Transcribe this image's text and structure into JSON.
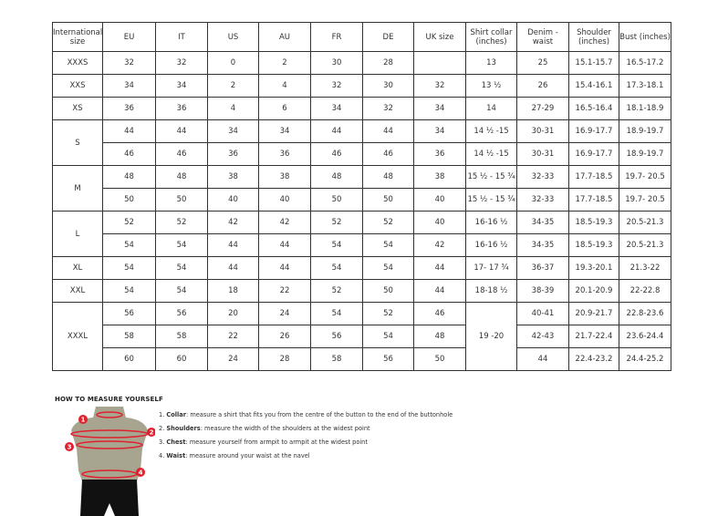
{
  "table": {
    "headers": [
      "International size",
      "EU",
      "IT",
      "US",
      "AU",
      "FR",
      "DE",
      "UK size",
      "Shirt collar (inches)",
      "Denim - waist",
      "Shoulder (inches)",
      "Bust (inches)"
    ],
    "groups": [
      {
        "size": "XXXS",
        "rows": [
          [
            "32",
            "32",
            "0",
            "2",
            "30",
            "28",
            "",
            "13",
            "25",
            "15.1-15.7",
            "16.5-17.2"
          ]
        ]
      },
      {
        "size": "XXS",
        "rows": [
          [
            "34",
            "34",
            "2",
            "4",
            "32",
            "30",
            "32",
            "13 ½",
            "26",
            "15.4-16.1",
            "17.3-18.1"
          ]
        ]
      },
      {
        "size": "XS",
        "rows": [
          [
            "36",
            "36",
            "4",
            "6",
            "34",
            "32",
            "34",
            "14",
            "27-29",
            "16.5-16.4",
            "18.1-18.9"
          ]
        ]
      },
      {
        "size": "S",
        "rows": [
          [
            "44",
            "44",
            "34",
            "34",
            "44",
            "44",
            "34",
            "14 ½ -15",
            "30-31",
            "16.9-17.7",
            "18.9-19.7"
          ],
          [
            "46",
            "46",
            "36",
            "36",
            "46",
            "46",
            "36",
            "14 ½ -15",
            "30-31",
            "16.9-17.7",
            "18.9-19.7"
          ]
        ]
      },
      {
        "size": "M",
        "rows": [
          [
            "48",
            "48",
            "38",
            "38",
            "48",
            "48",
            "38",
            "15 ½ - 15 ¾",
            "32-33",
            "17.7-18.5",
            "19.7- 20.5"
          ],
          [
            "50",
            "50",
            "40",
            "40",
            "50",
            "50",
            "40",
            "15 ½ - 15 ¾",
            "32-33",
            "17.7-18.5",
            "19.7- 20.5"
          ]
        ]
      },
      {
        "size": "L",
        "rows": [
          [
            "52",
            "52",
            "42",
            "42",
            "52",
            "52",
            "40",
            "16-16 ½",
            "34-35",
            "18.5-19.3",
            "20.5-21.3"
          ],
          [
            "54",
            "54",
            "44",
            "44",
            "54",
            "54",
            "42",
            "16-16 ½",
            "34-35",
            "18.5-19.3",
            "20.5-21.3"
          ]
        ]
      },
      {
        "size": "XL",
        "rows": [
          [
            "54",
            "54",
            "44",
            "44",
            "54",
            "54",
            "44",
            "17- 17 ¾",
            "36-37",
            "19.3-20.1",
            "21.3-22"
          ]
        ]
      },
      {
        "size": "XXL",
        "rows": [
          [
            "54",
            "54",
            "18",
            "22",
            "52",
            "50",
            "44",
            "18-18 ½",
            "38-39",
            "20.1-20.9",
            "22-22.8"
          ]
        ]
      },
      {
        "size": "XXXL",
        "collar_merged": "19 -20",
        "rows": [
          [
            "56",
            "56",
            "20",
            "24",
            "54",
            "52",
            "46",
            null,
            "40-41",
            "20.9-21.7",
            "22.8-23.6"
          ],
          [
            "58",
            "58",
            "22",
            "26",
            "56",
            "54",
            "48",
            null,
            "42-43",
            "21.7-22.4",
            "23.6-24.4"
          ],
          [
            "60",
            "60",
            "24",
            "28",
            "58",
            "56",
            "50",
            null,
            "44",
            "22.4-23.2",
            "24.4-25.2"
          ]
        ]
      }
    ]
  },
  "measure": {
    "title": "HOW TO MEASURE YOURSELF",
    "steps": [
      {
        "num": "1.",
        "term": "Collar",
        "text": ": measure a shirt that fits you from the centre of the button to the end of the buttonhole"
      },
      {
        "num": "2.",
        "term": "Shoulders",
        "text": ": measure the width of the shoulders at the widest point"
      },
      {
        "num": "3.",
        "term": "Chest",
        "text": ": measure yourself from armpit to armpit at the widest point"
      },
      {
        "num": "4.",
        "term": "Waist",
        "text": ": measure around your waist at the navel"
      }
    ],
    "markers": [
      "1",
      "2",
      "3",
      "4"
    ],
    "colors": {
      "marker": "#e0202e",
      "torso": "#a7a58f",
      "shorts": "#111111"
    }
  }
}
